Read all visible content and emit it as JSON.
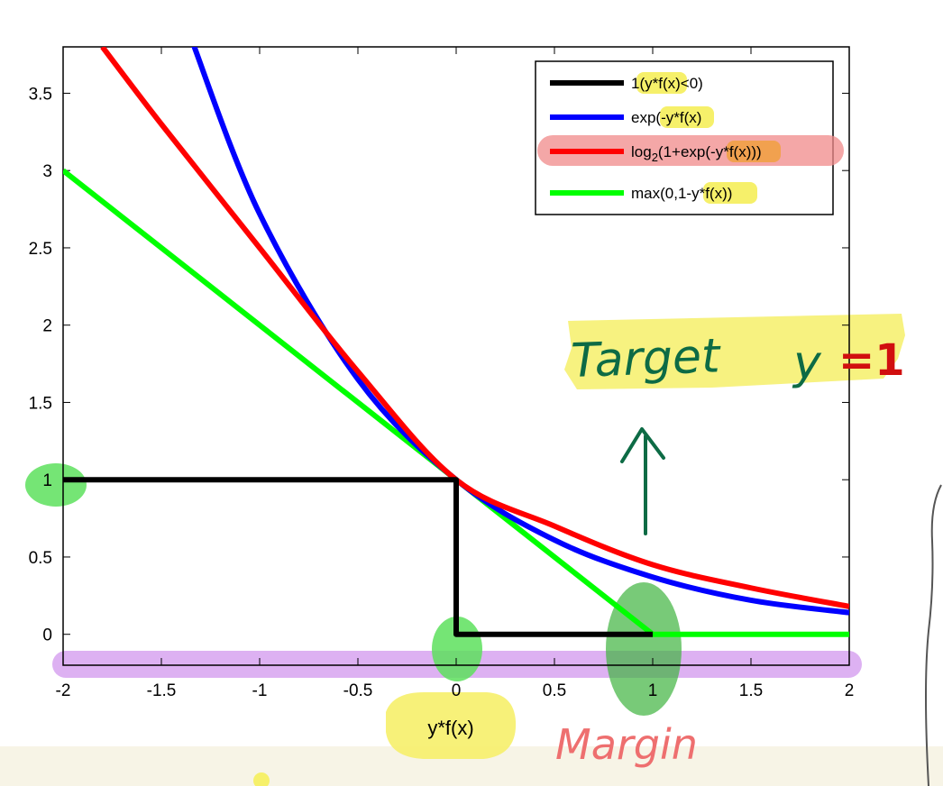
{
  "chart_data": {
    "type": "line",
    "xlabel": "y*f(x)",
    "ylabel": "",
    "xlim": [
      -2,
      2
    ],
    "ylim": [
      -0.2,
      3.8
    ],
    "x_ticks": [
      -2,
      -1.5,
      -1,
      -0.5,
      0,
      0.5,
      1,
      1.5,
      2
    ],
    "x_tick_labels": [
      "-2",
      "-1.5",
      "-1",
      "-0.5",
      "0",
      "0.5",
      "1",
      "1.5",
      "2"
    ],
    "y_ticks": [
      0,
      0.5,
      1,
      1.5,
      2,
      2.5,
      3,
      3.5
    ],
    "y_tick_labels": [
      "0",
      "0.5",
      "1",
      "1.5",
      "2",
      "2.5",
      "3",
      "3.5"
    ],
    "grid": false,
    "legend_position": "top-right",
    "series": [
      {
        "name": "1(y*f(x)<0)",
        "color": "#000000",
        "x": [
          -2,
          0,
          0,
          1
        ],
        "y": [
          1,
          1,
          0,
          0
        ]
      },
      {
        "name": "exp(-y*f(x)",
        "color": "#0000ff",
        "x": [
          -1.35,
          -1.0,
          -0.5,
          0,
          0.5,
          1.0,
          1.5,
          2.0
        ],
        "y": [
          3.86,
          2.72,
          1.65,
          1.0,
          0.61,
          0.37,
          0.22,
          0.14
        ]
      },
      {
        "name": "log2(1+exp(-y*f(x)))",
        "color": "#ff0000",
        "x": [
          -1.8,
          -1.5,
          -1.0,
          -0.5,
          0,
          0.5,
          1.0,
          1.5,
          2.0
        ],
        "y": [
          3.8,
          3.3,
          2.5,
          1.7,
          1.0,
          0.7,
          0.45,
          0.3,
          0.18
        ]
      },
      {
        "name": "max(0,1-y*f(x))",
        "color": "#00ff00",
        "x": [
          -2,
          1,
          2
        ],
        "y": [
          3,
          0,
          0
        ]
      }
    ],
    "annotations": [
      "Target",
      "y",
      "=1",
      "Margin"
    ]
  },
  "legend": {
    "entry1": {
      "prefix": "1(",
      "hl": "y*f(x)",
      "suffix": "<0)"
    },
    "entry2": {
      "prefix": "exp(",
      "hl": "-y*f(x)",
      "suffix": ""
    },
    "entry3": {
      "prefix": "log",
      "sub": "2",
      "mid": "(1+exp(",
      "hl": "-y*f(x)",
      "suffix": "))"
    },
    "entry4": {
      "prefix": "max(0,1-",
      "hl": "y*f(x)",
      "suffix": ")"
    }
  },
  "highlight_colors": {
    "yellow": "#f6f06a",
    "green": "#5de05d",
    "purple": "#d7a3f0",
    "pink": "#f08a8a",
    "ink": "#0d6b45",
    "coral": "#ee6f6f"
  }
}
